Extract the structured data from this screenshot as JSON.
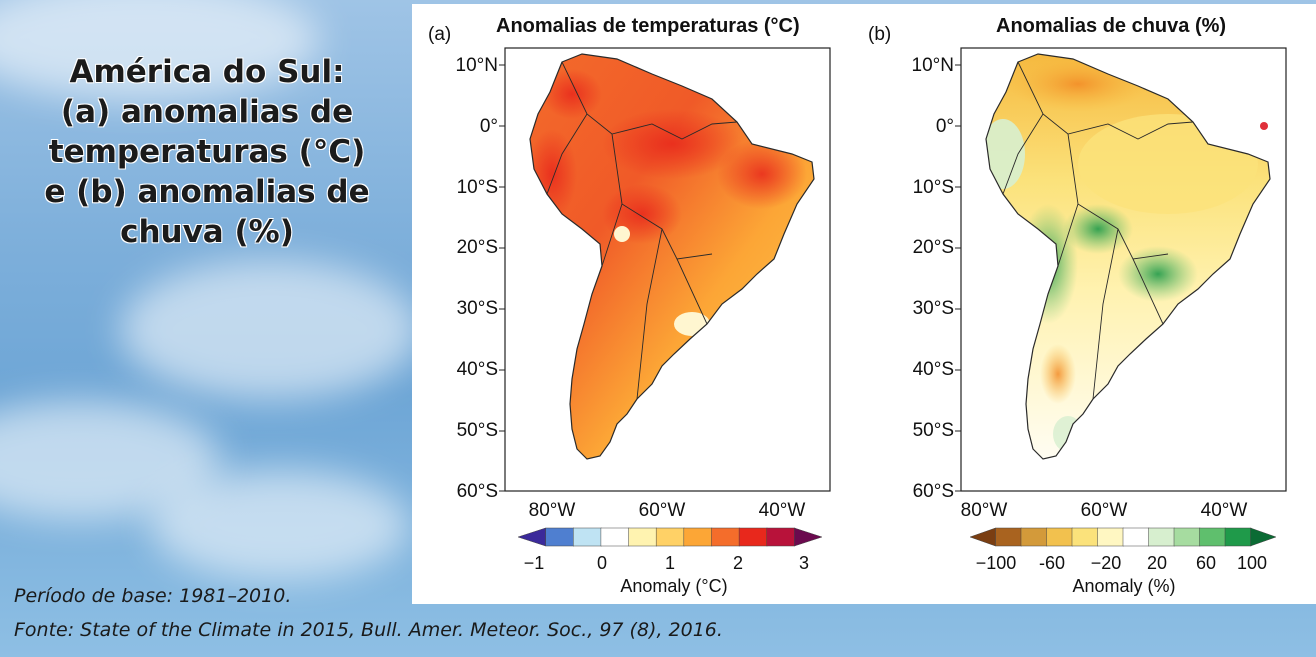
{
  "slide": {
    "title_lines": [
      "América do Sul:",
      "(a) anomalias de",
      "temperaturas  (°C)",
      "e (b) anomalias de",
      "chuva (%)"
    ],
    "footnote_base": "Período de base: 1981–2010.",
    "footnote_source": "Fonte: State of the Climate in 2015, Bull. Amer. Meteor. Soc., 97 (8), 2016."
  },
  "panel_a": {
    "label": "(a)",
    "title": "Anomalias de temperaturas  (°C)",
    "lat_ticks": [
      "10°N",
      "0°",
      "10°S",
      "20°S",
      "30°S",
      "40°S",
      "50°S",
      "60°S"
    ],
    "lon_ticks": [
      "80°W",
      "60°W",
      "40°W"
    ],
    "colorbar_ticks": [
      "−1",
      "0",
      "1",
      "2",
      "3"
    ],
    "colorbar_label": "Anomaly (°C)",
    "colorbar_colors": [
      "#3b2a9a",
      "#4f7fd0",
      "#bfe3f3",
      "#ffffff",
      "#fff3b0",
      "#ffd166",
      "#fca636",
      "#f46d2b",
      "#e8281c",
      "#b8123a",
      "#6b0a4e"
    ]
  },
  "panel_b": {
    "label": "(b)",
    "title": "Anomalias de chuva (%)",
    "lat_ticks": [
      "10°N",
      "0°",
      "10°S",
      "20°S",
      "30°S",
      "40°S",
      "50°S",
      "60°S"
    ],
    "lon_ticks": [
      "80°W",
      "60°W",
      "40°W"
    ],
    "colorbar_ticks": [
      "−100",
      "-60",
      "−20",
      "20",
      "60",
      "100"
    ],
    "colorbar_label": "Anomaly (%)",
    "colorbar_colors": [
      "#7a3e12",
      "#a9631f",
      "#d39a3a",
      "#f2c14e",
      "#fbe27b",
      "#fff7c2",
      "#ffffff",
      "#d7efcf",
      "#a6dca0",
      "#5fbf6d",
      "#1f9a4a",
      "#0b6b34"
    ]
  },
  "colors": {
    "land_outline": "#2a2a2a",
    "frame": "#222222"
  }
}
